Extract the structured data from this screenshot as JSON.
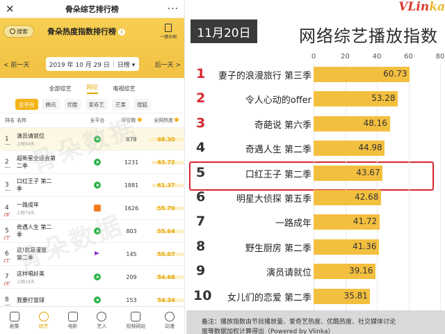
{
  "app": {
    "window_title": "骨朵综艺排行榜",
    "close_glyph": "✕",
    "more_glyph": "···"
  },
  "header": {
    "search_label": "搜索",
    "title": "骨朵热度指数排行榜",
    "info_glyph": "i",
    "long_image_label": "一键长图",
    "prev_day": "< 前一天",
    "next_day": "后一天 >",
    "date": "2019 年 10 月 29 日",
    "period": "日榜 ▾"
  },
  "category_tabs": [
    "全部综艺",
    "网综",
    "电视综艺"
  ],
  "category_active": 1,
  "platforms": [
    "全平台",
    "腾讯",
    "优酷",
    "爱奇艺",
    "芒果",
    "搜狐"
  ],
  "platform_active": 0,
  "table": {
    "headers": {
      "rank": "排名",
      "name": "名称",
      "platform": "全平台",
      "comments": "评论数",
      "heat": "全网热度"
    },
    "rows": [
      {
        "rank": "1",
        "name_l1": "演员请就位",
        "name_l2": "",
        "sub": "上映34天",
        "move": "",
        "icon": "play",
        "comments": "878",
        "heat": "68.30",
        "heat_pct": 100
      },
      {
        "rank": "2",
        "name_l1": "超新星全运会第",
        "name_l2": "二季",
        "sub": "",
        "move": "",
        "icon": "play",
        "comments": "1231",
        "heat": "63.72",
        "heat_pct": 93
      },
      {
        "rank": "3",
        "name_l1": "口红王子 第二",
        "name_l2": "季",
        "sub": "",
        "move": "",
        "icon": "play",
        "comments": "1881",
        "heat": "61.37",
        "heat_pct": 90
      },
      {
        "rank": "4",
        "name_l1": "一路成年",
        "name_l2": "",
        "sub": "上映79天",
        "move": "↓8",
        "icon": "mango",
        "comments": "1626",
        "heat": "55.79",
        "heat_pct": 82
      },
      {
        "rank": "5",
        "name_l1": "奇遇人生 第二",
        "name_l2": "季",
        "sub": "",
        "move": "↓3",
        "icon": "play",
        "comments": "803",
        "heat": "55.64",
        "heat_pct": 81
      },
      {
        "rank": "6",
        "name_l1": "这!就是灌篮",
        "name_l2": "第二季",
        "sub": "",
        "move": "↓1",
        "icon": "youku",
        "comments": "145",
        "heat": "55.07",
        "heat_pct": 80
      },
      {
        "rank": "7",
        "name_l1": "这样唱好美",
        "name_l2": "",
        "sub": "上映19天",
        "move": "↓6",
        "icon": "play",
        "comments": "209",
        "heat": "54.68",
        "heat_pct": 80
      },
      {
        "rank": "8",
        "name_l1": "我要打篮球",
        "name_l2": "",
        "sub": "",
        "move": "",
        "icon": "play",
        "comments": "153",
        "heat": "54.34",
        "heat_pct": 79
      }
    ]
  },
  "watermark": "骨朵数据",
  "bottom_nav": [
    {
      "label": "剧集",
      "icon": "tv-icon"
    },
    {
      "label": "综艺",
      "icon": "mic-icon"
    },
    {
      "label": "电影",
      "icon": "film-icon"
    },
    {
      "label": "艺人",
      "icon": "brush-icon"
    },
    {
      "label": "视频网站",
      "icon": "grid-icon"
    },
    {
      "label": "动漫",
      "icon": "person-icon"
    }
  ],
  "bottom_nav_active": 1,
  "colors": {
    "brand_yellow": "#f1c143",
    "bar": "#f3bf3f",
    "rank_top3": "#d7262c",
    "highlight": "#d7262c",
    "platform_green": "#2fb44a"
  },
  "right_panel": {
    "brand": "VLinka",
    "brand_part1": "VLin",
    "brand_part2": "ka",
    "date_badge": "11月20日",
    "title": "网络综艺播放指数",
    "footnote": "备注：播放指数由节目播放量、爱奇艺热度、优酷热度、社交媒体讨论",
    "footnote2": "度等数据加权计算得出（Powered by Vlinka）"
  },
  "chart_data": {
    "type": "bar",
    "orientation": "horizontal",
    "title": "网络综艺播放指数",
    "xlim": [
      0,
      80
    ],
    "ticks": [
      0,
      20,
      40,
      60,
      80
    ],
    "grid": true,
    "categories": [
      "妻子的浪漫旅行 第三季",
      "令人心动的offer",
      "奇葩说 第六季",
      "奇遇人生 第二季",
      "口红王子 第二季",
      "明星大侦探 第五季",
      "一路成年",
      "野生厨房 第二季",
      "演员请就位",
      "女儿们的恋爱 第二季"
    ],
    "ranks": [
      "1",
      "2",
      "3",
      "4",
      "5",
      "6",
      "7",
      "8",
      "9",
      "10"
    ],
    "values": [
      60.73,
      53.28,
      48.16,
      44.98,
      43.67,
      42.68,
      41.72,
      41.36,
      39.16,
      35.81
    ],
    "value_labels": [
      "60.73",
      "53.28",
      "48.16",
      "44.98",
      "43.67",
      "42.68",
      "41.72",
      "41.36",
      "39.16",
      "35.81"
    ],
    "highlighted_index": 4
  }
}
